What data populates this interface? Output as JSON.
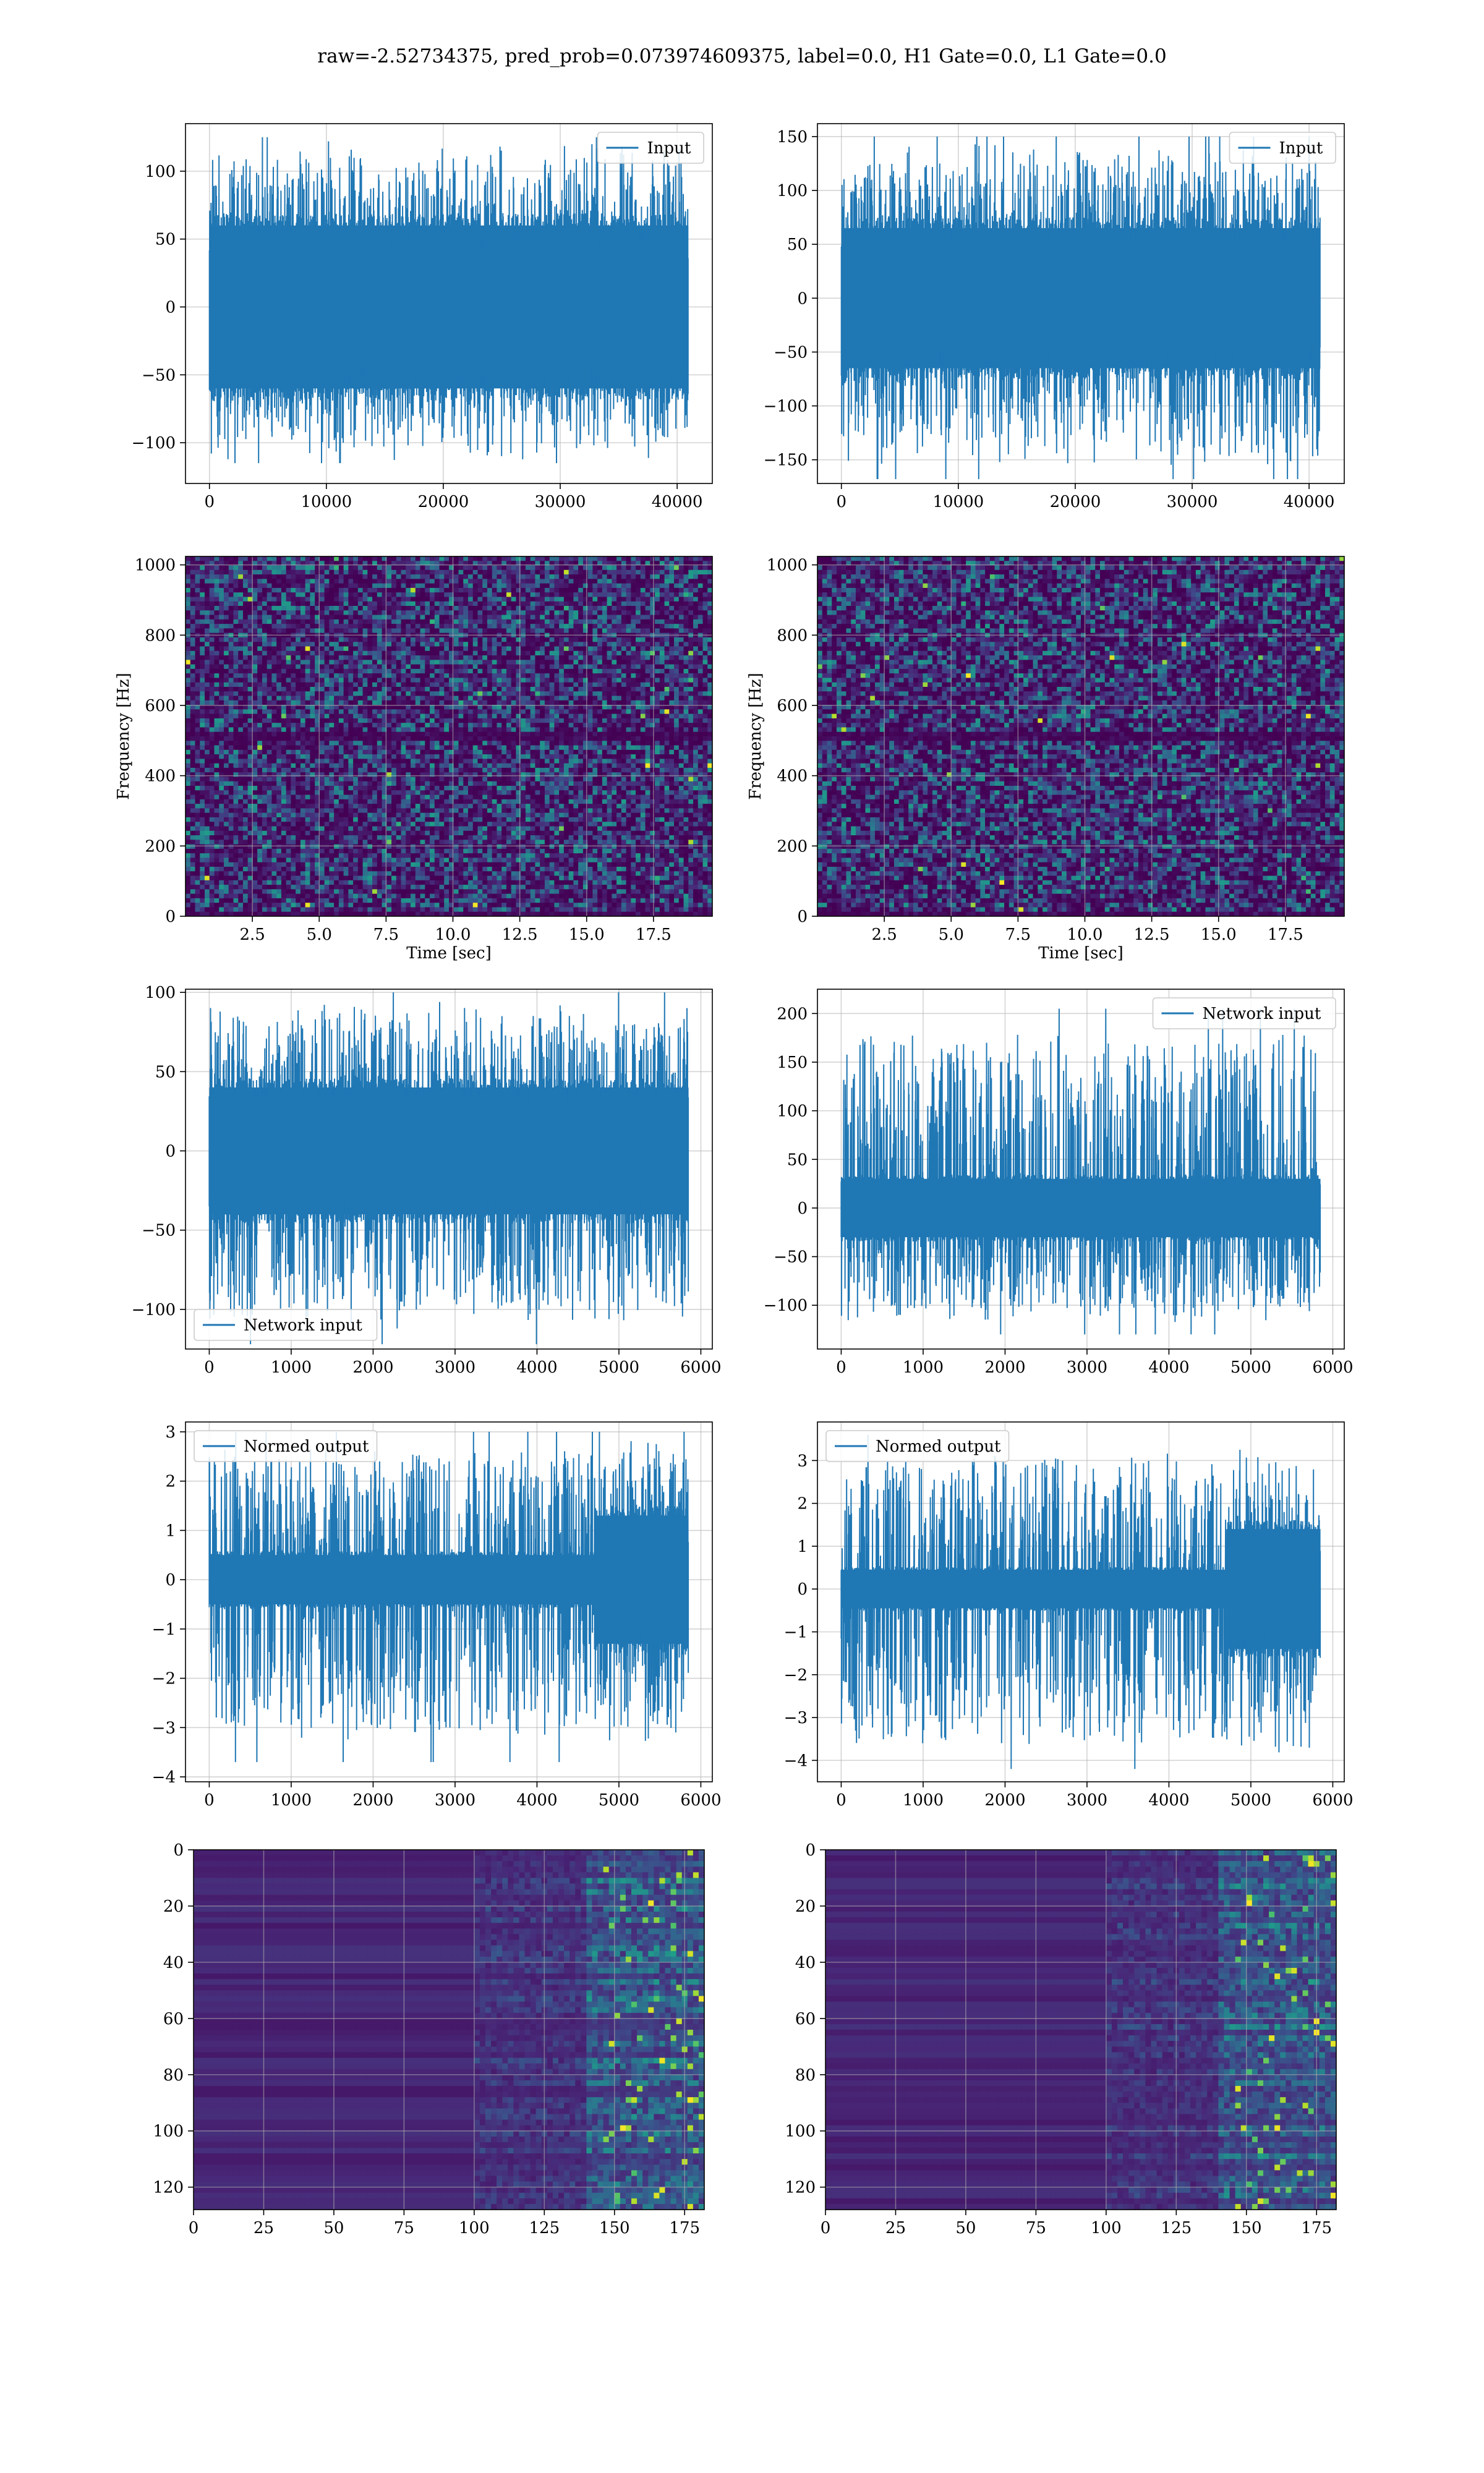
{
  "figure": {
    "suptitle": "raw=-2.52734375, pred_prob=0.073974609375, label=0.0, H1 Gate=0.0, L1 Gate=0.0",
    "colors": {
      "line": "#1f77b4",
      "grid": "#b0b0b0",
      "viridis_dark": "#440154",
      "viridis_mid": "#21918c",
      "viridis_light": "#fde725"
    }
  },
  "chart_data": [
    {
      "id": "input_h1",
      "type": "line",
      "series": [
        {
          "name": "Input"
        }
      ],
      "x_length": 40960,
      "xlim": [
        -2048,
        43008
      ],
      "ylim": [
        -130,
        135
      ],
      "x_ticks": [
        0,
        10000,
        20000,
        30000,
        40000
      ],
      "x_tick_labels": [
        "0",
        "10000",
        "20000",
        "30000",
        "40000"
      ],
      "y_ticks": [
        -100,
        -50,
        0,
        50,
        100
      ],
      "y_tick_labels": [
        "−100",
        "−50",
        "0",
        "50",
        "100"
      ],
      "envelope": {
        "core": 60,
        "peak_max": 125,
        "peak_min": -115
      },
      "legend": "top-right",
      "grid": true,
      "xlabel": "",
      "ylabel": ""
    },
    {
      "id": "input_l1",
      "type": "line",
      "series": [
        {
          "name": "Input"
        }
      ],
      "x_length": 40960,
      "xlim": [
        -2048,
        43008
      ],
      "ylim": [
        -172,
        162
      ],
      "x_ticks": [
        0,
        10000,
        20000,
        30000,
        40000
      ],
      "x_tick_labels": [
        "0",
        "10000",
        "20000",
        "30000",
        "40000"
      ],
      "y_ticks": [
        -150,
        -100,
        -50,
        0,
        50,
        100,
        150
      ],
      "y_tick_labels": [
        "−150",
        "−100",
        "−50",
        "0",
        "50",
        "100",
        "150"
      ],
      "envelope": {
        "core": 65,
        "peak_max": 150,
        "peak_min": -168
      },
      "legend": "top-right",
      "grid": true,
      "xlabel": "",
      "ylabel": ""
    },
    {
      "id": "spectrogram_h1",
      "type": "heatmap",
      "xlim": [
        0,
        19.7
      ],
      "ylim": [
        0,
        1024
      ],
      "x_ticks": [
        2.5,
        5.0,
        7.5,
        10.0,
        12.5,
        15.0,
        17.5
      ],
      "x_tick_labels": [
        "2.5",
        "5.0",
        "7.5",
        "10.0",
        "12.5",
        "15.0",
        "17.5"
      ],
      "y_ticks": [
        0,
        200,
        400,
        600,
        800,
        1000
      ],
      "y_tick_labels": [
        "0",
        "200",
        "400",
        "600",
        "800",
        "1000"
      ],
      "xlabel": "Time [sec]",
      "ylabel": "Frequency [Hz]",
      "colormap": "viridis",
      "grid": true
    },
    {
      "id": "spectrogram_l1",
      "type": "heatmap",
      "xlim": [
        0,
        19.7
      ],
      "ylim": [
        0,
        1024
      ],
      "x_ticks": [
        2.5,
        5.0,
        7.5,
        10.0,
        12.5,
        15.0,
        17.5
      ],
      "x_tick_labels": [
        "2.5",
        "5.0",
        "7.5",
        "10.0",
        "12.5",
        "15.0",
        "17.5"
      ],
      "y_ticks": [
        0,
        200,
        400,
        600,
        800,
        1000
      ],
      "y_tick_labels": [
        "0",
        "200",
        "400",
        "600",
        "800",
        "1000"
      ],
      "xlabel": "Time [sec]",
      "ylabel": "Frequency [Hz]",
      "colormap": "viridis",
      "grid": true
    },
    {
      "id": "network_input_h1",
      "type": "line",
      "series": [
        {
          "name": "Network input"
        }
      ],
      "x_length": 5850,
      "xlim": [
        -290,
        6140
      ],
      "ylim": [
        -125,
        102
      ],
      "x_ticks": [
        0,
        1000,
        2000,
        3000,
        4000,
        5000,
        6000
      ],
      "x_tick_labels": [
        "0",
        "1000",
        "2000",
        "3000",
        "4000",
        "5000",
        "6000"
      ],
      "y_ticks": [
        -100,
        -50,
        0,
        50,
        100
      ],
      "y_tick_labels": [
        "−100",
        "−50",
        "0",
        "50",
        "100"
      ],
      "envelope": {
        "core": 40,
        "peak_max": 100,
        "peak_min": -122
      },
      "legend": "bottom-left",
      "grid": true,
      "xlabel": "",
      "ylabel": ""
    },
    {
      "id": "network_input_l1",
      "type": "line",
      "series": [
        {
          "name": "Network input"
        }
      ],
      "x_length": 5850,
      "xlim": [
        -290,
        6140
      ],
      "ylim": [
        -145,
        225
      ],
      "x_ticks": [
        0,
        1000,
        2000,
        3000,
        4000,
        5000,
        6000
      ],
      "x_tick_labels": [
        "0",
        "1000",
        "2000",
        "3000",
        "4000",
        "5000",
        "6000"
      ],
      "y_ticks": [
        -100,
        -50,
        0,
        50,
        100,
        150,
        200
      ],
      "y_tick_labels": [
        "−100",
        "−50",
        "0",
        "50",
        "100",
        "150",
        "200"
      ],
      "envelope": {
        "core": 30,
        "peak_max": 205,
        "peak_min": -130
      },
      "legend": "top-right",
      "grid": true,
      "xlabel": "",
      "ylabel": ""
    },
    {
      "id": "normed_output_h1",
      "type": "line",
      "series": [
        {
          "name": "Normed output"
        }
      ],
      "x_length": 5850,
      "xlim": [
        -290,
        6140
      ],
      "ylim": [
        -4.1,
        3.2
      ],
      "x_ticks": [
        0,
        1000,
        2000,
        3000,
        4000,
        5000,
        6000
      ],
      "x_tick_labels": [
        "0",
        "1000",
        "2000",
        "3000",
        "4000",
        "5000",
        "6000"
      ],
      "y_ticks": [
        -4,
        -3,
        -2,
        -1,
        0,
        1,
        2,
        3
      ],
      "y_tick_labels": [
        "−4",
        "−3",
        "−2",
        "−1",
        "0",
        "1",
        "2",
        "3"
      ],
      "envelope": {
        "core": 0.5,
        "burst_start": 4700,
        "burst_core": 1.3,
        "peak_max": 3.0,
        "peak_min": -3.7
      },
      "legend": "top-left",
      "grid": true,
      "xlabel": "",
      "ylabel": ""
    },
    {
      "id": "normed_output_l1",
      "type": "line",
      "series": [
        {
          "name": "Normed output"
        }
      ],
      "x_length": 5850,
      "xlim": [
        -290,
        6140
      ],
      "ylim": [
        -4.5,
        3.9
      ],
      "x_ticks": [
        0,
        1000,
        2000,
        3000,
        4000,
        5000,
        6000
      ],
      "x_tick_labels": [
        "0",
        "1000",
        "2000",
        "3000",
        "4000",
        "5000",
        "6000"
      ],
      "y_ticks": [
        -4,
        -3,
        -2,
        -1,
        0,
        1,
        2,
        3
      ],
      "y_tick_labels": [
        "−4",
        "−3",
        "−2",
        "−1",
        "0",
        "1",
        "2",
        "3"
      ],
      "envelope": {
        "core": 0.45,
        "burst_start": 4700,
        "burst_core": 1.4,
        "peak_max": 3.6,
        "peak_min": -4.2
      },
      "legend": "top-left",
      "grid": true,
      "xlabel": "",
      "ylabel": ""
    },
    {
      "id": "feature_map_h1",
      "type": "heatmap",
      "xlim": [
        0,
        182
      ],
      "ylim": [
        128,
        0
      ],
      "x_ticks": [
        0,
        25,
        50,
        75,
        100,
        125,
        150,
        175
      ],
      "x_tick_labels": [
        "0",
        "25",
        "50",
        "75",
        "100",
        "125",
        "150",
        "175"
      ],
      "y_ticks": [
        0,
        20,
        40,
        60,
        80,
        100,
        120
      ],
      "y_tick_labels": [
        "0",
        "20",
        "40",
        "60",
        "80",
        "100",
        "120"
      ],
      "colormap": "viridis",
      "grid": true,
      "xlabel": "",
      "ylabel": ""
    },
    {
      "id": "feature_map_l1",
      "type": "heatmap",
      "xlim": [
        0,
        182
      ],
      "ylim": [
        128,
        0
      ],
      "x_ticks": [
        0,
        25,
        50,
        75,
        100,
        125,
        150,
        175
      ],
      "x_tick_labels": [
        "0",
        "25",
        "50",
        "75",
        "100",
        "125",
        "150",
        "175"
      ],
      "y_ticks": [
        0,
        20,
        40,
        60,
        80,
        100,
        120
      ],
      "y_tick_labels": [
        "0",
        "20",
        "40",
        "60",
        "80",
        "100",
        "120"
      ],
      "colormap": "viridis",
      "grid": true,
      "xlabel": "",
      "ylabel": ""
    }
  ]
}
